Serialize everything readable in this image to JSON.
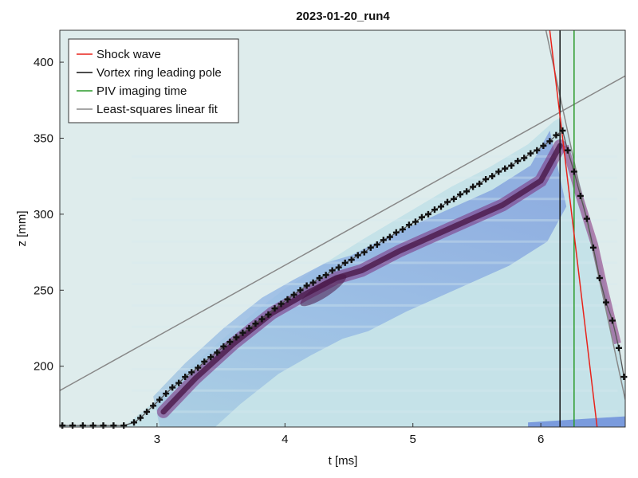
{
  "chart_data": {
    "type": "heatmap",
    "title": "2023-01-20_run4",
    "xlabel": "t [ms]",
    "ylabel": "z [mm]",
    "xlim": [
      2.24,
      6.66
    ],
    "ylim": [
      160,
      421
    ],
    "x_ticks": [
      {
        "value": 3,
        "label": "3"
      },
      {
        "value": 4,
        "label": "4"
      },
      {
        "value": 5,
        "label": "5"
      },
      {
        "value": 6,
        "label": "6"
      }
    ],
    "y_ticks": [
      {
        "value": 200,
        "label": "200"
      },
      {
        "value": 250,
        "label": "250"
      },
      {
        "value": 300,
        "label": "300"
      },
      {
        "value": 350,
        "label": "350"
      },
      {
        "value": 400,
        "label": "400"
      }
    ],
    "legend": {
      "placement": "top-left",
      "entries": [
        {
          "label": "Shock wave",
          "color": "#e8231b"
        },
        {
          "label": "Vortex ring leading pole",
          "color": "#111111"
        },
        {
          "label": "PIV imaging time",
          "color": "#2a9a2a"
        },
        {
          "label": "Least-squares linear fit",
          "color": "#888888"
        }
      ]
    },
    "colors": {
      "background": "#deecec",
      "heat_low": "#c5e2e8",
      "heat_mid": "#6d8fd8",
      "heat_high": "#4a1848"
    },
    "heatmap_shape": {
      "outline": [
        [
          2.24,
          161
        ],
        [
          2.75,
          161
        ],
        [
          3.0,
          178
        ],
        [
          3.2,
          195
        ],
        [
          3.5,
          217
        ],
        [
          3.8,
          238
        ],
        [
          4.0,
          251
        ],
        [
          4.3,
          267
        ],
        [
          4.6,
          283
        ],
        [
          5.0,
          303
        ],
        [
          5.3,
          318
        ],
        [
          5.6,
          331
        ],
        [
          5.9,
          346
        ],
        [
          6.1,
          361
        ],
        [
          6.16,
          364
        ],
        [
          6.22,
          350
        ],
        [
          6.3,
          322
        ],
        [
          6.4,
          288
        ],
        [
          6.5,
          255
        ],
        [
          6.6,
          218
        ],
        [
          6.66,
          185
        ],
        [
          6.66,
          160
        ],
        [
          2.24,
          160
        ]
      ],
      "high_ridge": [
        [
          3.05,
          170
        ],
        [
          3.3,
          192
        ],
        [
          3.6,
          215
        ],
        [
          3.9,
          235
        ],
        [
          4.15,
          247
        ],
        [
          4.4,
          258
        ],
        [
          4.6,
          263
        ],
        [
          4.9,
          276
        ],
        [
          5.3,
          291
        ],
        [
          5.7,
          306
        ],
        [
          6.0,
          322
        ],
        [
          6.15,
          345
        ]
      ],
      "ridge_peak": {
        "x": 4.3,
        "y": 250
      }
    },
    "series": [
      {
        "name": "Vortex ring leading pole",
        "color": "#111111",
        "marker": "plus",
        "x": [
          2.26,
          2.34,
          2.42,
          2.5,
          2.58,
          2.66,
          2.74,
          2.82,
          2.87,
          2.92,
          2.97,
          3.02,
          3.07,
          3.12,
          3.17,
          3.22,
          3.27,
          3.32,
          3.37,
          3.42,
          3.47,
          3.52,
          3.57,
          3.62,
          3.67,
          3.72,
          3.77,
          3.82,
          3.87,
          3.92,
          3.97,
          4.02,
          4.07,
          4.12,
          4.17,
          4.22,
          4.27,
          4.32,
          4.37,
          4.42,
          4.47,
          4.52,
          4.57,
          4.62,
          4.67,
          4.72,
          4.77,
          4.82,
          4.87,
          4.92,
          4.97,
          5.02,
          5.07,
          5.12,
          5.17,
          5.22,
          5.27,
          5.32,
          5.37,
          5.42,
          5.47,
          5.52,
          5.57,
          5.62,
          5.67,
          5.72,
          5.77,
          5.82,
          5.87,
          5.92,
          5.97,
          6.02,
          6.07,
          6.12,
          6.17,
          6.21,
          6.26,
          6.31,
          6.36,
          6.41,
          6.46,
          6.51,
          6.56,
          6.61,
          6.65
        ],
        "y": [
          161,
          161,
          161,
          161,
          161,
          161,
          161,
          163,
          166,
          170,
          174,
          178,
          182,
          186,
          189,
          193,
          196,
          199,
          203,
          206,
          209,
          213,
          216,
          219,
          222,
          225,
          228,
          231,
          234,
          238,
          241,
          244,
          247,
          250,
          253,
          255,
          258,
          260,
          263,
          265,
          268,
          270,
          273,
          275,
          278,
          280,
          283,
          285,
          288,
          290,
          293,
          295,
          298,
          300,
          303,
          305,
          308,
          310,
          313,
          315,
          318,
          320,
          323,
          325,
          328,
          330,
          332,
          335,
          337,
          340,
          342,
          345,
          348,
          352,
          355,
          342,
          328,
          312,
          297,
          278,
          258,
          242,
          230,
          212,
          193
        ]
      },
      {
        "name": "Shock wave",
        "color": "#e8231b",
        "x": [
          6.07,
          6.44
        ],
        "y": [
          421,
          160
        ]
      }
    ],
    "vertical_lines": [
      {
        "name": "Vortex ring leading pole",
        "x": 6.15,
        "color": "#111111"
      },
      {
        "name": "PIV imaging time",
        "x": 6.26,
        "color": "#2a9a2a"
      }
    ],
    "fit_lines": [
      {
        "name": "Least-squares linear fit",
        "color": "#888888",
        "x": [
          2.24,
          6.66
        ],
        "y": [
          184,
          391
        ]
      },
      {
        "name": "Least-squares linear fit",
        "color": "#888888",
        "x": [
          6.04,
          6.66
        ],
        "y": [
          421,
          178
        ]
      }
    ]
  }
}
